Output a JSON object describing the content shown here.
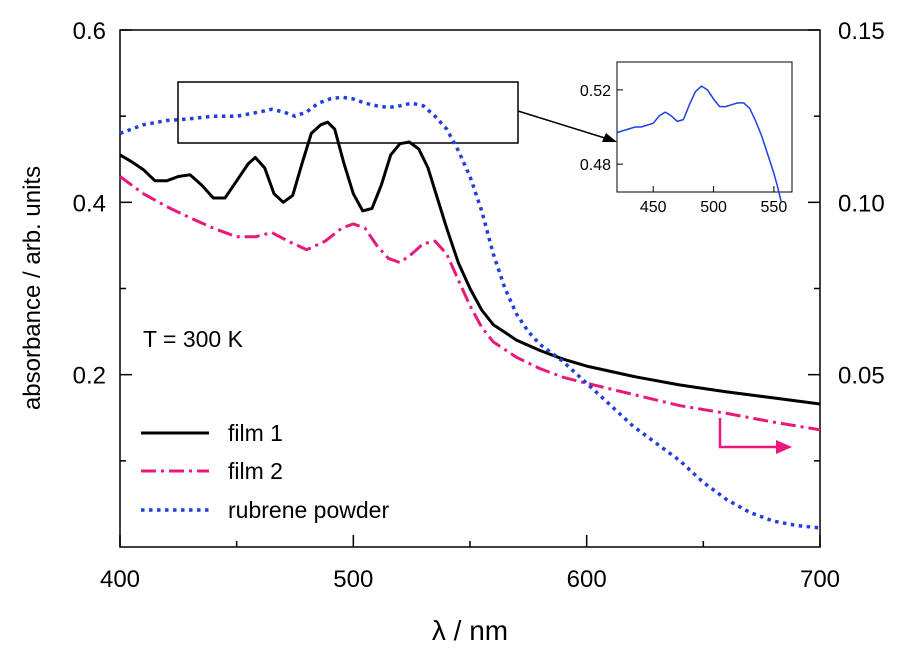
{
  "chart_data": {
    "type": "line",
    "xlabel": "λ / nm",
    "ylabel": "absorbance / arb. units",
    "xlim": [
      400,
      700
    ],
    "ylim": [
      0.0,
      0.6
    ],
    "y2lim": [
      0.0,
      0.15
    ],
    "x_ticks": [
      "400",
      "500",
      "600",
      "700"
    ],
    "y_ticks": [
      "0.2",
      "0.4",
      "0.6"
    ],
    "y_tick_values": [
      0.2,
      0.4,
      0.6
    ],
    "y2_ticks": [
      "0.05",
      "0.10",
      "0.15"
    ],
    "y2_tick_values": [
      0.05,
      0.1,
      0.15
    ],
    "annotation": "T = 300 K",
    "grid": false,
    "legend_position": "bottom-left",
    "series": [
      {
        "name": "film 1",
        "axis": "left",
        "color": "#000000",
        "style": "solid",
        "x": [
          400,
          405,
          410,
          415,
          420,
          425,
          430,
          435,
          440,
          445,
          450,
          455,
          458,
          462,
          466,
          470,
          474,
          478,
          482,
          486,
          489,
          492,
          496,
          500,
          504,
          508,
          512,
          516,
          520,
          524,
          528,
          532,
          536,
          540,
          545,
          550,
          555,
          560,
          570,
          580,
          590,
          600,
          620,
          640,
          660,
          680,
          700
        ],
        "y": [
          0.455,
          0.447,
          0.438,
          0.425,
          0.425,
          0.43,
          0.432,
          0.42,
          0.405,
          0.405,
          0.425,
          0.445,
          0.452,
          0.44,
          0.41,
          0.4,
          0.408,
          0.445,
          0.48,
          0.49,
          0.493,
          0.485,
          0.445,
          0.41,
          0.39,
          0.393,
          0.42,
          0.455,
          0.468,
          0.47,
          0.462,
          0.44,
          0.405,
          0.37,
          0.33,
          0.3,
          0.275,
          0.258,
          0.24,
          0.228,
          0.218,
          0.21,
          0.198,
          0.188,
          0.18,
          0.173,
          0.166
        ]
      },
      {
        "name": "film 2",
        "axis": "left",
        "color": "#e8197a",
        "style": "dash-dot",
        "x": [
          400,
          410,
          420,
          430,
          440,
          450,
          458,
          465,
          472,
          480,
          488,
          495,
          500,
          505,
          510,
          515,
          520,
          525,
          530,
          535,
          540,
          545,
          550,
          555,
          560,
          570,
          580,
          590,
          600,
          620,
          640,
          660,
          680,
          700
        ],
        "y": [
          0.43,
          0.41,
          0.395,
          0.382,
          0.37,
          0.36,
          0.36,
          0.365,
          0.355,
          0.345,
          0.355,
          0.37,
          0.375,
          0.37,
          0.35,
          0.335,
          0.33,
          0.34,
          0.352,
          0.355,
          0.34,
          0.31,
          0.28,
          0.255,
          0.238,
          0.22,
          0.207,
          0.197,
          0.19,
          0.177,
          0.164,
          0.155,
          0.145,
          0.136
        ]
      },
      {
        "name": "rubrene powder",
        "axis": "left",
        "color": "#1f3fe0",
        "style": "dotted",
        "x": [
          400,
          410,
          420,
          430,
          440,
          450,
          460,
          465,
          470,
          475,
          480,
          485,
          490,
          495,
          500,
          505,
          510,
          515,
          520,
          525,
          530,
          535,
          540,
          545,
          550,
          555,
          560,
          565,
          570,
          575,
          580,
          585,
          590,
          600,
          610,
          620,
          630,
          640,
          650,
          660,
          670,
          680,
          690,
          700
        ],
        "y": [
          0.48,
          0.49,
          0.495,
          0.497,
          0.5,
          0.5,
          0.505,
          0.508,
          0.505,
          0.5,
          0.505,
          0.515,
          0.52,
          0.522,
          0.52,
          0.515,
          0.512,
          0.51,
          0.512,
          0.515,
          0.512,
          0.5,
          0.485,
          0.46,
          0.43,
          0.39,
          0.34,
          0.3,
          0.27,
          0.25,
          0.235,
          0.225,
          0.215,
          0.19,
          0.165,
          0.14,
          0.12,
          0.1,
          0.075,
          0.055,
          0.04,
          0.03,
          0.025,
          0.022
        ]
      }
    ],
    "inset": {
      "xlim": [
        420,
        565
      ],
      "ylim": [
        0.465,
        0.535
      ],
      "x_ticks": [
        "450",
        "500",
        "550"
      ],
      "x_tick_values": [
        450,
        500,
        550
      ],
      "y_ticks": [
        "0.48",
        "0.52"
      ],
      "y_tick_values": [
        0.48,
        0.52
      ],
      "series": {
        "color": "#1f3fe0",
        "x": [
          420,
          425,
          430,
          435,
          440,
          445,
          450,
          455,
          460,
          465,
          470,
          475,
          480,
          485,
          490,
          495,
          500,
          505,
          510,
          515,
          520,
          525,
          530,
          535,
          540,
          545,
          550,
          553,
          556
        ],
        "y": [
          0.497,
          0.498,
          0.499,
          0.5,
          0.5,
          0.501,
          0.502,
          0.506,
          0.508,
          0.506,
          0.503,
          0.504,
          0.512,
          0.519,
          0.522,
          0.52,
          0.515,
          0.511,
          0.511,
          0.512,
          0.513,
          0.513,
          0.51,
          0.503,
          0.495,
          0.485,
          0.475,
          0.468,
          0.46
        ]
      }
    }
  }
}
